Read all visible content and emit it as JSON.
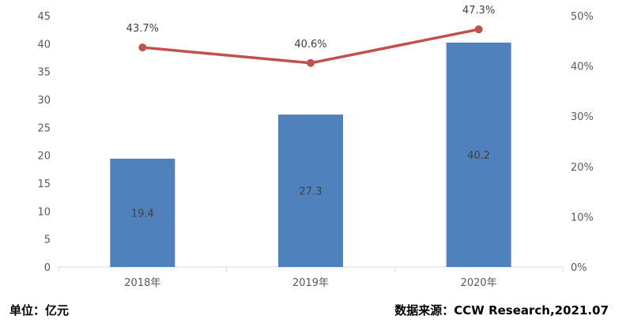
{
  "chart_data": {
    "type": "bar+line",
    "categories": [
      "2018年",
      "2019年",
      "2020年"
    ],
    "series": [
      {
        "values": [
          19.4,
          27.3,
          40.2
        ],
        "kind": "bar",
        "axis": "left",
        "color": "#4f81bd"
      },
      {
        "values": [
          43.7,
          40.6,
          47.3
        ],
        "kind": "line",
        "axis": "right",
        "color": "#c0504d"
      }
    ],
    "bar_labels": [
      "19.4",
      "27.3",
      "40.2"
    ],
    "line_labels": [
      "43.7%",
      "40.6%",
      "47.3%"
    ],
    "ylim_left": [
      0,
      45
    ],
    "yticks_left": [
      "0",
      "5",
      "10",
      "15",
      "20",
      "25",
      "30",
      "35",
      "40",
      "45"
    ],
    "ylim_right": [
      0,
      50
    ],
    "yticks_right": [
      "0%",
      "10%",
      "20%",
      "30%",
      "40%",
      "50%"
    ],
    "grid": false,
    "legend": "none"
  },
  "footer": {
    "unit": "单位：亿元",
    "source": "数据来源：CCW Research,2021.07"
  },
  "colors": {
    "bar": "#4f81bd",
    "line": "#c0504d",
    "axis": "#d9d9d9",
    "text": "#595959"
  }
}
